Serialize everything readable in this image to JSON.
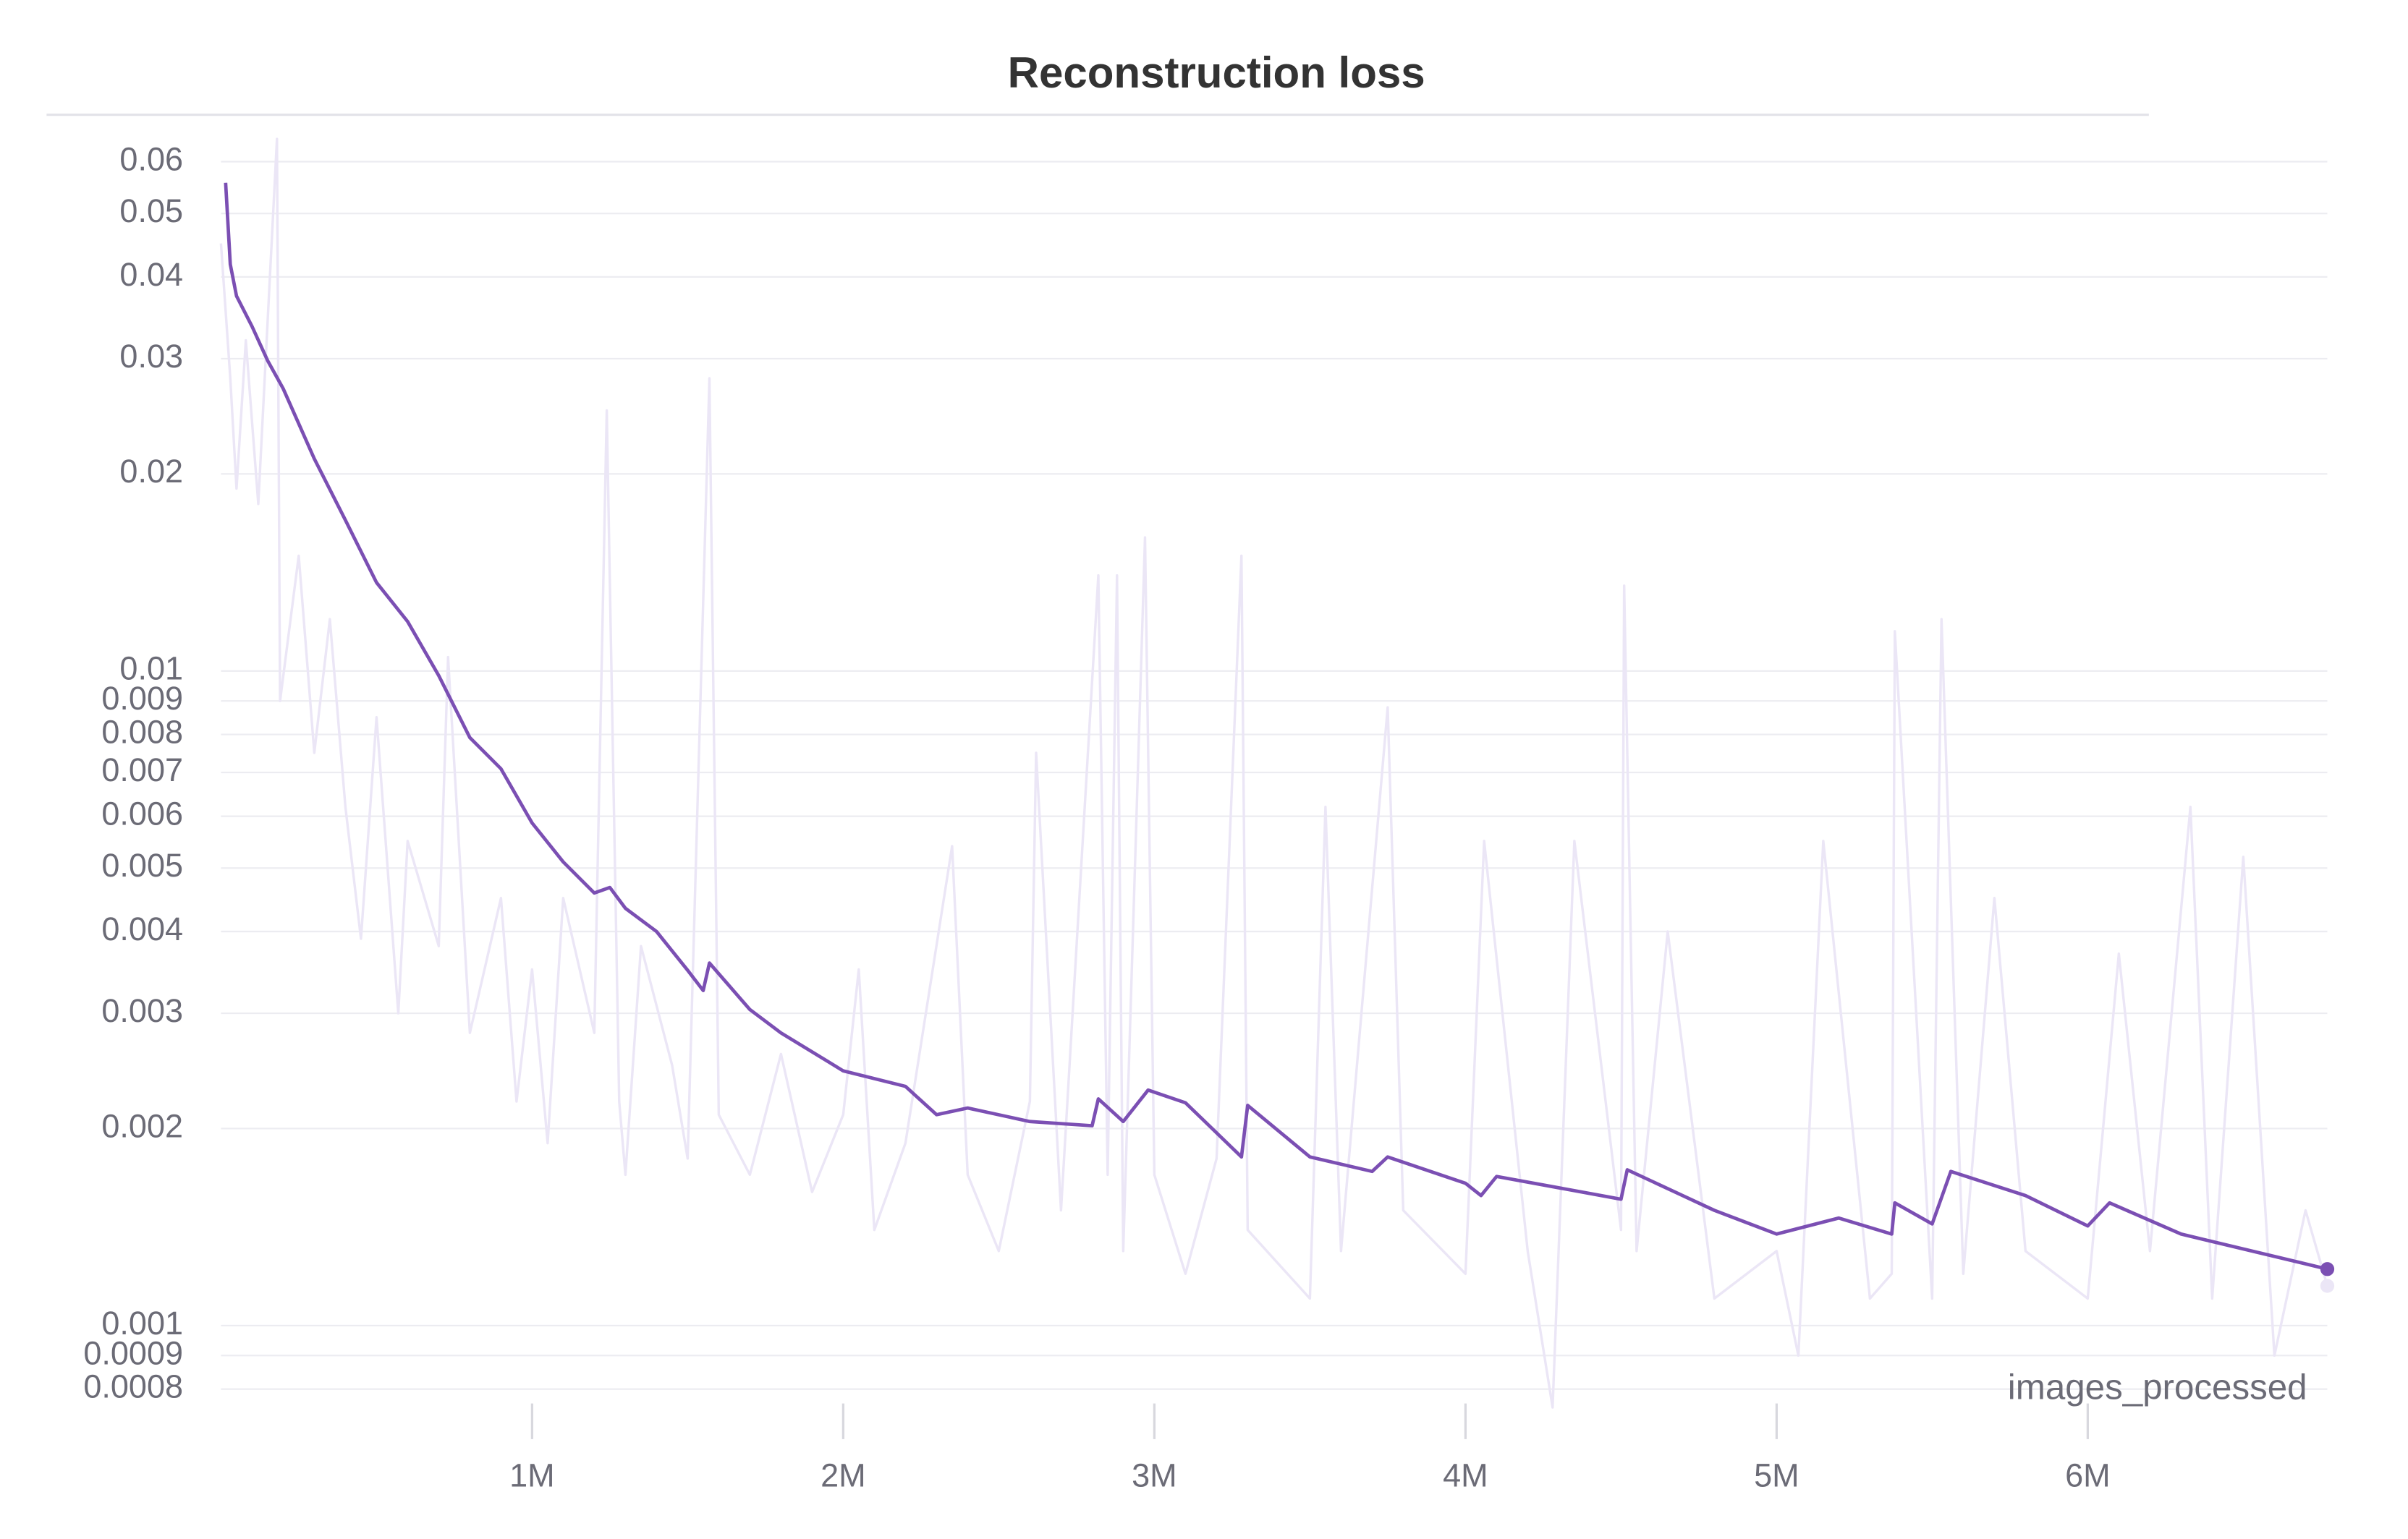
{
  "chart_data": {
    "type": "line",
    "title": "Reconstruction loss",
    "xlabel": "images_processed",
    "ylog": true,
    "grid": true,
    "xlim": [
      0,
      6770000
    ],
    "ylim": [
      0.00074,
      0.067
    ],
    "xticks": [
      {
        "value": 1000000,
        "label": "1M"
      },
      {
        "value": 2000000,
        "label": "2M"
      },
      {
        "value": 3000000,
        "label": "3M"
      },
      {
        "value": 4000000,
        "label": "4M"
      },
      {
        "value": 5000000,
        "label": "5M"
      },
      {
        "value": 6000000,
        "label": "6M"
      }
    ],
    "yticks": [
      0.0008,
      0.0009,
      0.001,
      0.002,
      0.003,
      0.004,
      0.005,
      0.006,
      0.007,
      0.008,
      0.009,
      0.01,
      0.02,
      0.03,
      0.04,
      0.05,
      0.06
    ],
    "series": [
      {
        "color": "#ebe6f6",
        "x": [
          0,
          30000,
          50000,
          80000,
          120000,
          180000,
          190000,
          250000,
          300000,
          350000,
          400000,
          450000,
          500000,
          570000,
          600000,
          700000,
          730000,
          800000,
          900000,
          950000,
          1000000,
          1050000,
          1100000,
          1200000,
          1240000,
          1280000,
          1300000,
          1350000,
          1450000,
          1500000,
          1570000,
          1600000,
          1700000,
          1800000,
          1900000,
          2000000,
          2050000,
          2100000,
          2200000,
          2350000,
          2400000,
          2500000,
          2600000,
          2620000,
          2700000,
          2820000,
          2850000,
          2880000,
          2900000,
          2970000,
          3000000,
          3100000,
          3200000,
          3280000,
          3300000,
          3500000,
          3550000,
          3600000,
          3750000,
          3800000,
          4000000,
          4060000,
          4200000,
          4280000,
          4350000,
          4500000,
          4510000,
          4550000,
          4650000,
          4800000,
          5000000,
          5070000,
          5150000,
          5300000,
          5370000,
          5380000,
          5500000,
          5530000,
          5600000,
          5700000,
          5800000,
          6000000,
          6100000,
          6200000,
          6330000,
          6400000,
          6500000,
          6600000,
          6700000,
          6770000
        ],
        "values": [
          0.045,
          0.028,
          0.019,
          0.032,
          0.018,
          0.065,
          0.009,
          0.015,
          0.0075,
          0.012,
          0.0062,
          0.0039,
          0.0085,
          0.003,
          0.0055,
          0.0038,
          0.0105,
          0.0028,
          0.0045,
          0.0022,
          0.0035,
          0.0019,
          0.0045,
          0.0028,
          0.025,
          0.0022,
          0.0017,
          0.0038,
          0.0025,
          0.0018,
          0.028,
          0.0021,
          0.0017,
          0.0026,
          0.0016,
          0.0021,
          0.0035,
          0.0014,
          0.0019,
          0.0054,
          0.0017,
          0.0013,
          0.0022,
          0.0075,
          0.0015,
          0.014,
          0.0017,
          0.014,
          0.0013,
          0.016,
          0.0017,
          0.0012,
          0.0018,
          0.015,
          0.0014,
          0.0011,
          0.0062,
          0.0013,
          0.0088,
          0.0015,
          0.0012,
          0.0055,
          0.0013,
          0.00075,
          0.0055,
          0.0014,
          0.0135,
          0.0013,
          0.004,
          0.0011,
          0.0013,
          0.0009,
          0.0055,
          0.0011,
          0.0012,
          0.0115,
          0.0011,
          0.012,
          0.0012,
          0.0045,
          0.0013,
          0.0011,
          0.0037,
          0.0013,
          0.0062,
          0.0011,
          0.0052,
          0.0009,
          0.0015,
          0.00115
        ]
      },
      {
        "color": "#7b4fb3",
        "x": [
          15000,
          30000,
          50000,
          100000,
          150000,
          200000,
          300000,
          400000,
          500000,
          600000,
          700000,
          800000,
          900000,
          1000000,
          1100000,
          1200000,
          1250000,
          1300000,
          1400000,
          1500000,
          1550000,
          1570000,
          1700000,
          1800000,
          2000000,
          2200000,
          2300000,
          2400000,
          2600000,
          2800000,
          2820000,
          2900000,
          2980000,
          3100000,
          3280000,
          3300000,
          3500000,
          3700000,
          3750000,
          4000000,
          4050000,
          4100000,
          4500000,
          4520000,
          4800000,
          5000000,
          5200000,
          5370000,
          5380000,
          5500000,
          5560000,
          5800000,
          6000000,
          6070000,
          6300000,
          6770000
        ],
        "values": [
          0.0557,
          0.0418,
          0.0374,
          0.0336,
          0.0298,
          0.027,
          0.0211,
          0.017,
          0.01365,
          0.0119,
          0.00984,
          0.00791,
          0.00709,
          0.00586,
          0.00511,
          0.00458,
          0.00467,
          0.00434,
          0.004,
          0.00349,
          0.00325,
          0.00358,
          0.00304,
          0.0028,
          0.00245,
          0.00232,
          0.0021,
          0.00215,
          0.00205,
          0.00202,
          0.00222,
          0.00205,
          0.00229,
          0.00219,
          0.00181,
          0.00217,
          0.00181,
          0.00172,
          0.00181,
          0.00165,
          0.00158,
          0.00169,
          0.00156,
          0.00173,
          0.0015,
          0.00138,
          0.00146,
          0.00138,
          0.00154,
          0.00143,
          0.00172,
          0.00158,
          0.00142,
          0.00154,
          0.00138,
          0.00122
        ]
      }
    ]
  }
}
